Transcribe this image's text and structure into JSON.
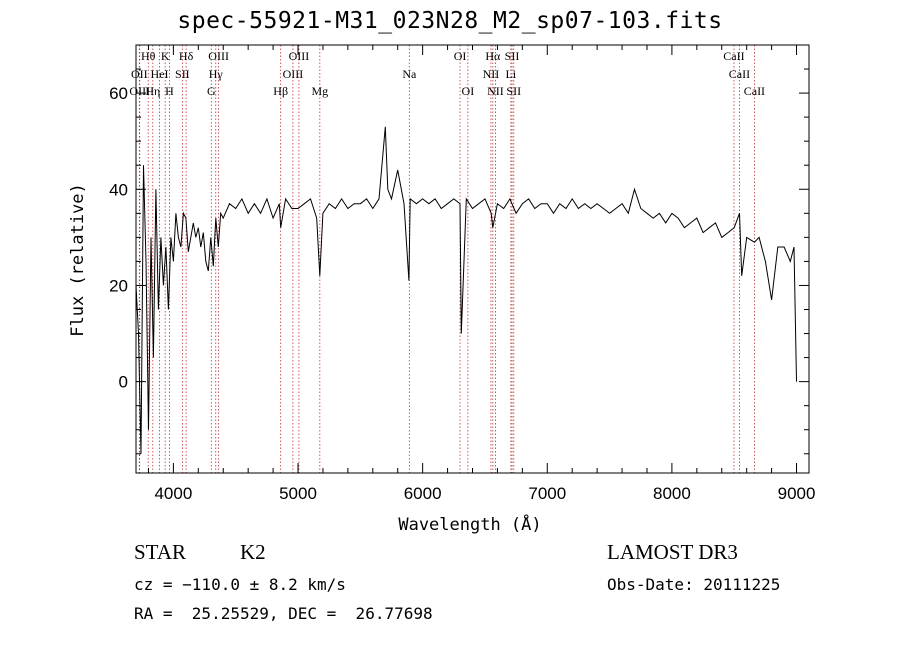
{
  "chart_data": {
    "type": "line",
    "title": "spec-55921-M31_023N28_M2_sp07-103.fits",
    "xlabel": "Wavelength (Å)",
    "ylabel": "Flux (relative)",
    "xlim": [
      3700,
      9100
    ],
    "ylim": [
      -19,
      70
    ],
    "xticks": [
      4000,
      5000,
      6000,
      7000,
      8000,
      9000
    ],
    "yticks": [
      0,
      20,
      40,
      60
    ],
    "xtick_labels": [
      "4000",
      "5000",
      "6000",
      "7000",
      "8000",
      "9000"
    ],
    "ytick_labels": [
      "0",
      "20",
      "40",
      "60"
    ],
    "line_color": "#000000",
    "marker_color": "#c03030",
    "spectrum": {
      "x": [
        3700,
        3720,
        3740,
        3760,
        3780,
        3800,
        3820,
        3840,
        3860,
        3880,
        3900,
        3920,
        3940,
        3960,
        3980,
        4000,
        4020,
        4040,
        4060,
        4080,
        4100,
        4120,
        4140,
        4160,
        4180,
        4200,
        4220,
        4240,
        4260,
        4280,
        4300,
        4320,
        4340,
        4360,
        4380,
        4400,
        4450,
        4500,
        4550,
        4600,
        4650,
        4700,
        4750,
        4800,
        4850,
        4861,
        4900,
        4950,
        5000,
        5050,
        5100,
        5150,
        5175,
        5200,
        5250,
        5300,
        5350,
        5400,
        5450,
        5500,
        5550,
        5600,
        5650,
        5700,
        5720,
        5750,
        5800,
        5850,
        5890,
        5900,
        5950,
        6000,
        6050,
        6100,
        6150,
        6200,
        6250,
        6300,
        6310,
        6350,
        6400,
        6450,
        6500,
        6550,
        6563,
        6600,
        6650,
        6700,
        6750,
        6800,
        6850,
        6900,
        6950,
        7000,
        7050,
        7100,
        7150,
        7200,
        7250,
        7300,
        7350,
        7400,
        7450,
        7500,
        7550,
        7600,
        7650,
        7700,
        7750,
        7800,
        7850,
        7900,
        7950,
        8000,
        8050,
        8100,
        8150,
        8200,
        8250,
        8300,
        8350,
        8400,
        8450,
        8500,
        8542,
        8560,
        8600,
        8662,
        8700,
        8750,
        8800,
        8850,
        8900,
        8950,
        8980,
        9000
      ],
      "y": [
        20,
        10,
        -15,
        45,
        25,
        -10,
        30,
        5,
        40,
        15,
        30,
        20,
        28,
        15,
        30,
        25,
        35,
        30,
        28,
        35,
        34,
        27,
        30,
        33,
        30,
        32,
        28,
        31,
        25,
        23,
        30,
        24,
        34,
        28,
        35,
        34,
        37,
        36,
        38,
        35,
        37,
        35,
        38,
        34,
        37,
        32,
        38,
        36,
        36,
        37,
        38,
        34,
        22,
        35,
        37,
        36,
        38,
        36,
        37,
        37,
        38,
        36,
        38,
        53,
        40,
        38,
        44,
        37,
        21,
        38,
        37,
        38,
        37,
        38,
        36,
        37,
        38,
        37,
        10,
        38,
        36,
        37,
        38,
        35,
        32,
        37,
        36,
        38,
        35,
        37,
        38,
        36,
        37,
        37,
        35,
        37,
        36,
        38,
        36,
        37,
        36,
        37,
        36,
        35,
        36,
        37,
        35,
        40,
        36,
        35,
        34,
        35,
        33,
        35,
        34,
        32,
        33,
        34,
        31,
        32,
        33,
        30,
        31,
        32,
        35,
        22,
        30,
        29,
        30,
        25,
        17,
        28,
        28,
        25,
        28,
        0
      ]
    },
    "lines": [
      {
        "label": "Hθ",
        "wl": 3798,
        "row": 0
      },
      {
        "label": "K",
        "wl": 3934,
        "row": 0
      },
      {
        "label": "Hδ",
        "wl": 4102,
        "row": 0
      },
      {
        "label": "OIII",
        "wl": 4363,
        "row": 0
      },
      {
        "label": "OIII",
        "wl": 5007,
        "row": 0
      },
      {
        "label": "OI",
        "wl": 6300,
        "row": 0
      },
      {
        "label": "Hα",
        "wl": 6563,
        "row": 0
      },
      {
        "label": "SII",
        "wl": 6717,
        "row": 0
      },
      {
        "label": "CaII",
        "wl": 8498,
        "row": 0
      },
      {
        "label": "OII",
        "wl": 3727,
        "row": 1
      },
      {
        "label": "HeI",
        "wl": 3889,
        "row": 1
      },
      {
        "label": "SII",
        "wl": 4072,
        "row": 1
      },
      {
        "label": "Hγ",
        "wl": 4340,
        "row": 1
      },
      {
        "label": "OIII",
        "wl": 4959,
        "row": 1
      },
      {
        "label": "Na",
        "wl": 5893,
        "row": 1
      },
      {
        "label": "NII",
        "wl": 6548,
        "row": 1
      },
      {
        "label": "Li",
        "wl": 6708,
        "row": 1
      },
      {
        "label": "CaII",
        "wl": 8542,
        "row": 1
      },
      {
        "label": "OIII",
        "wl": 3730,
        "row": 2
      },
      {
        "label": "Hη",
        "wl": 3835,
        "row": 2
      },
      {
        "label": "H",
        "wl": 3968,
        "row": 2
      },
      {
        "label": "G",
        "wl": 4304,
        "row": 2
      },
      {
        "label": "Hβ",
        "wl": 4861,
        "row": 2
      },
      {
        "label": "Mg",
        "wl": 5175,
        "row": 2
      },
      {
        "label": "OI",
        "wl": 6363,
        "row": 2
      },
      {
        "label": "NII",
        "wl": 6584,
        "row": 2
      },
      {
        "label": "SII",
        "wl": 6731,
        "row": 2
      },
      {
        "label": "CaII",
        "wl": 8662,
        "row": 2
      }
    ]
  },
  "info": {
    "class": "STAR",
    "subclass": "K2",
    "survey": "LAMOST DR3",
    "cz": "cz = −110.0 ± 8.2 km/s",
    "obs_date": "Obs-Date: 20111225",
    "coords": "RA =  25.25529, DEC =  26.77698"
  }
}
